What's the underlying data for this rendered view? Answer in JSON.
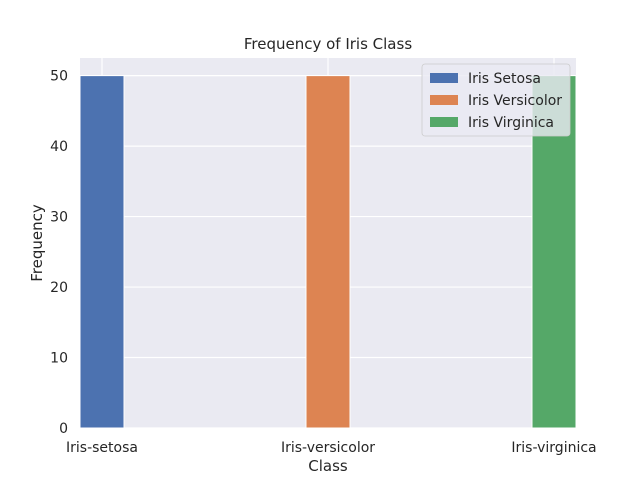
{
  "chart_data": {
    "type": "bar",
    "title": "Frequency of Iris Class",
    "xlabel": "Class",
    "ylabel": "Frequency",
    "categories": [
      "Iris-setosa",
      "Iris-versicolor",
      "Iris-virginica"
    ],
    "series": [
      {
        "name": "Iris Setosa",
        "color": "#4c72b0",
        "values": [
          50,
          null,
          null
        ]
      },
      {
        "name": "Iris Versicolor",
        "color": "#dd8452",
        "values": [
          null,
          50,
          null
        ]
      },
      {
        "name": "Iris Virginica",
        "color": "#55a868",
        "values": [
          null,
          null,
          50
        ]
      }
    ],
    "ylim": [
      0,
      52.5
    ],
    "yticks": [
      0,
      10,
      20,
      30,
      40,
      50
    ],
    "grid": true,
    "legend_position": "top-right",
    "background_color": "#eaeaf2"
  }
}
